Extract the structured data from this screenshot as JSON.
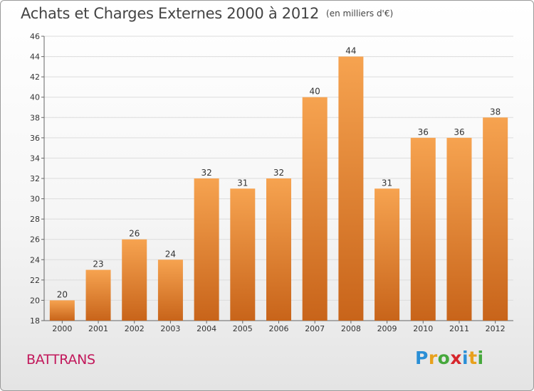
{
  "header": {
    "title": "Achats et Charges Externes 2000 à 2012",
    "unit": "(en milliers d'€)"
  },
  "footer": {
    "place": "BATTRANS",
    "logo_letters": [
      "P",
      "r",
      "o",
      "x",
      "i",
      "t",
      "i"
    ],
    "logo_colors": [
      "#2a8fd6",
      "#e8a11c",
      "#46a83c",
      "#d6262c",
      "#2a8fd6",
      "#e8a11c",
      "#46a83c"
    ]
  },
  "chart_data": {
    "type": "bar",
    "title": "Achats et Charges Externes 2000 à 2012",
    "subtitle": "(en milliers d'€)",
    "categories": [
      "2000",
      "2001",
      "2002",
      "2003",
      "2004",
      "2005",
      "2006",
      "2007",
      "2008",
      "2009",
      "2010",
      "2011",
      "2012"
    ],
    "values": [
      20,
      23,
      26,
      24,
      32,
      31,
      32,
      40,
      44,
      31,
      36,
      36,
      38
    ],
    "data_labels": [
      "20",
      "23",
      "26",
      "24",
      "32",
      "31",
      "32",
      "40",
      "44",
      "31",
      "36",
      "36",
      "38"
    ],
    "ylim": [
      18,
      46
    ],
    "yticks": [
      18,
      20,
      22,
      24,
      26,
      28,
      30,
      32,
      34,
      36,
      38,
      40,
      42,
      44,
      46
    ],
    "ytick_labels": [
      "18",
      "20",
      "22",
      "24",
      "26",
      "28",
      "30",
      "32",
      "34",
      "36",
      "38",
      "40",
      "42",
      "44",
      "46"
    ],
    "xlabel": "",
    "ylabel": "",
    "grid": true,
    "bar_color_top": "#f6a350",
    "bar_color_bottom": "#c8641a"
  }
}
